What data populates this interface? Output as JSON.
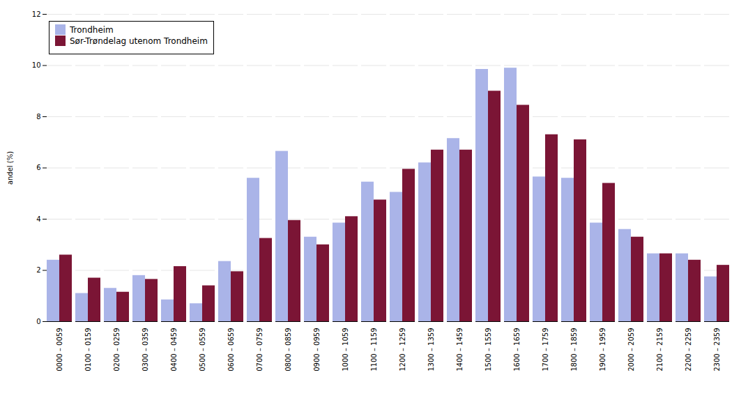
{
  "chart_data": {
    "type": "bar",
    "categories": [
      "0000 – 0059",
      "0100 – 0159",
      "0200 – 0259",
      "0300 – 0359",
      "0400 – 0459",
      "0500 – 0559",
      "0600 – 0659",
      "0700 – 0759",
      "0800 – 0859",
      "0900 – 0959",
      "1000 – 1059",
      "1100 – 1159",
      "1200 – 1259",
      "1300 – 1359",
      "1400 – 1459",
      "1500 – 1559",
      "1600 – 1659",
      "1700 – 1759",
      "1800 – 1859",
      "1900 – 1959",
      "2000 – 2059",
      "2100 – 2159",
      "2200 – 2259",
      "2300 – 2359"
    ],
    "series": [
      {
        "name": "Trondheim",
        "color": "#aab4e8",
        "values": [
          2.4,
          1.1,
          1.3,
          1.8,
          0.85,
          0.7,
          2.35,
          5.6,
          6.65,
          3.3,
          3.85,
          5.45,
          5.05,
          6.2,
          7.15,
          9.85,
          9.9,
          5.65,
          5.6,
          3.85,
          3.6,
          2.65,
          2.65,
          1.75
        ]
      },
      {
        "name": "Sør-Trøndelag utenom Trondheim",
        "color": "#7b1535",
        "values": [
          2.6,
          1.7,
          1.15,
          1.65,
          2.15,
          1.4,
          1.95,
          3.25,
          3.95,
          3.0,
          4.1,
          4.75,
          5.95,
          6.7,
          6.7,
          9.0,
          8.45,
          7.3,
          7.1,
          5.4,
          3.3,
          2.65,
          2.4,
          2.2
        ]
      }
    ],
    "ylabel": "andel (%)",
    "ylim": [
      0,
      12
    ],
    "yticks": [
      0,
      2,
      4,
      6,
      8,
      10,
      12
    ],
    "grid": true,
    "legend": "upper left"
  }
}
